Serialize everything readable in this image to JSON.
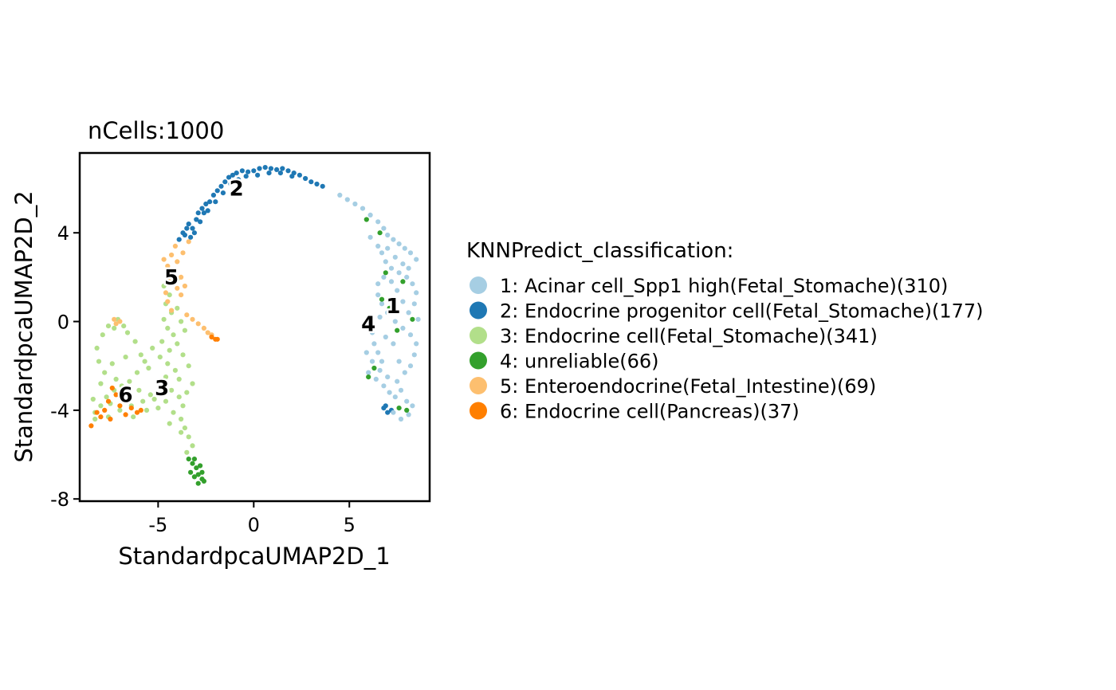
{
  "chart_data": {
    "type": "scatter",
    "subtitle": "nCells:1000",
    "xlabel": "StandardpcaUMAP2D_1",
    "ylabel": "StandardpcaUMAP2D_2",
    "xlim": [
      -9.1,
      9.2
    ],
    "ylim": [
      -8.1,
      7.6
    ],
    "x_ticks": [
      {
        "value": -5,
        "label": "-5"
      },
      {
        "value": 0,
        "label": "0"
      },
      {
        "value": 5,
        "label": "5"
      }
    ],
    "y_ticks": [
      {
        "value": -8,
        "label": "-8"
      },
      {
        "value": -4,
        "label": "-4"
      },
      {
        "value": 0,
        "label": "0"
      },
      {
        "value": 4,
        "label": "4"
      }
    ],
    "legend": {
      "title": "KNNPredict_classification:",
      "placement": "right",
      "entries": [
        {
          "label": "1: Acinar cell_Spp1 high(Fetal_Stomache)(310)",
          "color": "#A6CEE3"
        },
        {
          "label": "2: Endocrine progenitor cell(Fetal_Stomache)(177)",
          "color": "#1F78B4"
        },
        {
          "label": "3: Endocrine cell(Fetal_Stomache)(341)",
          "color": "#B2DF8A"
        },
        {
          "label": "4: unreliable(66)",
          "color": "#33A02C"
        },
        {
          "label": "5: Enteroendocrine(Fetal_Intestine)(69)",
          "color": "#FDBF6F"
        },
        {
          "label": "6: Endocrine cell(Pancreas)(37)",
          "color": "#FF7F00"
        }
      ]
    },
    "cluster_labels": [
      {
        "text": "1",
        "x": 7.3,
        "y": 0.7
      },
      {
        "text": "2",
        "x": -0.9,
        "y": 6.0
      },
      {
        "text": "3",
        "x": -4.8,
        "y": -3.0
      },
      {
        "text": "4",
        "x": 6.0,
        "y": -0.1
      },
      {
        "text": "5",
        "x": -4.3,
        "y": 2.0
      },
      {
        "text": "6",
        "x": -6.7,
        "y": -3.3
      }
    ],
    "point_groups": [
      {
        "cluster": 2,
        "color": "#1F78B4",
        "points": [
          [
            -3.9,
            3.7
          ],
          [
            -3.7,
            4.0
          ],
          [
            -3.5,
            4.2
          ],
          [
            -3.4,
            4.4
          ],
          [
            -3.2,
            4.2
          ],
          [
            -3.0,
            4.6
          ],
          [
            -2.9,
            4.9
          ],
          [
            -2.7,
            5.1
          ],
          [
            -2.5,
            5.3
          ],
          [
            -2.3,
            5.4
          ],
          [
            -2.1,
            5.7
          ],
          [
            -1.9,
            5.9
          ],
          [
            -1.7,
            6.1
          ],
          [
            -1.5,
            6.3
          ],
          [
            -1.3,
            6.5
          ],
          [
            -1.1,
            6.6
          ],
          [
            -0.9,
            6.7
          ],
          [
            -0.6,
            6.8
          ],
          [
            -0.3,
            6.75
          ],
          [
            0.0,
            6.8
          ],
          [
            0.3,
            6.9
          ],
          [
            0.6,
            6.95
          ],
          [
            0.9,
            6.9
          ],
          [
            1.2,
            6.85
          ],
          [
            1.5,
            6.9
          ],
          [
            1.8,
            6.8
          ],
          [
            2.1,
            6.7
          ],
          [
            2.4,
            6.6
          ],
          [
            2.7,
            6.45
          ],
          [
            3.0,
            6.3
          ],
          [
            3.3,
            6.2
          ],
          [
            3.6,
            6.1
          ],
          [
            -3.3,
            3.8
          ],
          [
            -3.1,
            4.0
          ],
          [
            -2.8,
            4.5
          ],
          [
            -2.4,
            5.0
          ],
          [
            -2.0,
            5.4
          ],
          [
            -1.6,
            5.8
          ],
          [
            -1.2,
            6.2
          ],
          [
            -0.8,
            6.4
          ],
          [
            -0.4,
            6.55
          ],
          [
            0.2,
            6.6
          ],
          [
            0.8,
            6.7
          ],
          [
            1.4,
            6.7
          ],
          [
            2.0,
            6.55
          ],
          [
            -3.6,
            3.9
          ],
          [
            -2.6,
            4.9
          ],
          [
            6.8,
            -3.9
          ],
          [
            7.0,
            -4.1
          ],
          [
            7.2,
            -4.0
          ],
          [
            6.9,
            -3.8
          ]
        ]
      },
      {
        "cluster": 1,
        "color": "#A6CEE3",
        "points": [
          [
            4.5,
            5.7
          ],
          [
            4.9,
            5.5
          ],
          [
            5.3,
            5.3
          ],
          [
            5.7,
            5.1
          ],
          [
            6.1,
            4.8
          ],
          [
            6.5,
            4.5
          ],
          [
            6.8,
            4.2
          ],
          [
            7.0,
            3.9
          ],
          [
            7.3,
            3.7
          ],
          [
            7.6,
            3.5
          ],
          [
            7.9,
            3.3
          ],
          [
            8.2,
            3.1
          ],
          [
            8.5,
            2.8
          ],
          [
            6.5,
            3.4
          ],
          [
            6.7,
            3.1
          ],
          [
            6.9,
            2.7
          ],
          [
            7.2,
            2.4
          ],
          [
            7.6,
            2.2
          ],
          [
            8.0,
            2.0
          ],
          [
            8.3,
            1.7
          ],
          [
            8.5,
            1.3
          ],
          [
            8.4,
            0.8
          ],
          [
            8.1,
            0.4
          ],
          [
            7.8,
            0.9
          ],
          [
            7.5,
            1.4
          ],
          [
            7.2,
            1.8
          ],
          [
            6.8,
            2.0
          ],
          [
            6.5,
            1.7
          ],
          [
            6.5,
            1.2
          ],
          [
            6.7,
            0.8
          ],
          [
            7.0,
            0.4
          ],
          [
            7.4,
            0.0
          ],
          [
            7.8,
            -0.3
          ],
          [
            8.2,
            -0.6
          ],
          [
            8.5,
            -1.0
          ],
          [
            6.2,
            -0.5
          ],
          [
            6.3,
            -1.0
          ],
          [
            6.5,
            -1.4
          ],
          [
            6.7,
            -1.8
          ],
          [
            6.6,
            -2.2
          ],
          [
            6.4,
            -2.6
          ],
          [
            6.8,
            -2.9
          ],
          [
            7.1,
            -3.2
          ],
          [
            7.4,
            -3.4
          ],
          [
            7.7,
            -3.1
          ],
          [
            8.0,
            -3.6
          ],
          [
            8.3,
            -3.8
          ],
          [
            8.1,
            -4.2
          ],
          [
            7.7,
            -4.4
          ],
          [
            7.3,
            -4.1
          ],
          [
            7.0,
            -2.5
          ],
          [
            7.5,
            -2.7
          ],
          [
            7.9,
            -2.3
          ],
          [
            8.2,
            -2.0
          ],
          [
            8.4,
            -1.5
          ],
          [
            7.3,
            -1.0
          ],
          [
            6.9,
            -0.7
          ],
          [
            6.0,
            -2.3
          ],
          [
            6.2,
            -1.8
          ],
          [
            5.9,
            -1.4
          ],
          [
            7.0,
            3.3
          ],
          [
            7.8,
            2.6
          ],
          [
            8.1,
            2.4
          ],
          [
            6.6,
            0.2
          ],
          [
            7.6,
            -1.8
          ],
          [
            8.6,
            0.1
          ],
          [
            6.1,
            3.8
          ],
          [
            7.4,
            2.9
          ]
        ]
      },
      {
        "cluster": 4,
        "color": "#33A02C",
        "points": [
          [
            5.9,
            4.6
          ],
          [
            6.6,
            4.0
          ],
          [
            6.9,
            2.2
          ],
          [
            7.8,
            1.8
          ],
          [
            6.7,
            1.0
          ],
          [
            7.1,
            0.6
          ],
          [
            8.3,
            0.1
          ],
          [
            7.5,
            -0.4
          ],
          [
            6.3,
            -2.1
          ],
          [
            6.0,
            -2.5
          ],
          [
            7.6,
            -3.9
          ],
          [
            8.0,
            -4.0
          ],
          [
            -3.4,
            -6.2
          ],
          [
            -3.2,
            -6.4
          ],
          [
            -3.0,
            -6.6
          ],
          [
            -2.9,
            -6.9
          ],
          [
            -2.7,
            -7.1
          ],
          [
            -2.9,
            -7.3
          ],
          [
            -3.1,
            -7.0
          ],
          [
            -2.8,
            -6.5
          ],
          [
            -3.3,
            -6.8
          ],
          [
            -2.6,
            -7.2
          ],
          [
            -2.7,
            -6.8
          ],
          [
            -3.1,
            -6.2
          ]
        ]
      },
      {
        "cluster": 3,
        "color": "#B2DF8A",
        "points": [
          [
            -4.4,
            1.2
          ],
          [
            -4.6,
            0.8
          ],
          [
            -4.3,
            0.4
          ],
          [
            -4.7,
            0.1
          ],
          [
            -4.5,
            -0.3
          ],
          [
            -4.2,
            -0.6
          ],
          [
            -4.8,
            -0.9
          ],
          [
            -4.4,
            -1.3
          ],
          [
            -4.9,
            -1.6
          ],
          [
            -4.5,
            -1.9
          ],
          [
            -4.1,
            -2.2
          ],
          [
            -4.6,
            -2.5
          ],
          [
            -5.0,
            -2.8
          ],
          [
            -4.3,
            -3.1
          ],
          [
            -3.9,
            -3.4
          ],
          [
            -4.6,
            -3.6
          ],
          [
            -5.0,
            -3.9
          ],
          [
            -4.2,
            -4.1
          ],
          [
            -3.8,
            -4.4
          ],
          [
            -3.6,
            -4.8
          ],
          [
            -3.4,
            -5.2
          ],
          [
            -3.2,
            -5.6
          ],
          [
            -3.5,
            -5.9
          ],
          [
            -3.7,
            -3.8
          ],
          [
            -3.9,
            -2.6
          ],
          [
            -5.3,
            -1.2
          ],
          [
            -5.7,
            -1.8
          ],
          [
            -6.1,
            -2.3
          ],
          [
            -6.5,
            -2.7
          ],
          [
            -6.9,
            -2.9
          ],
          [
            -7.3,
            -3.1
          ],
          [
            -7.7,
            -3.4
          ],
          [
            -8.0,
            -3.8
          ],
          [
            -8.3,
            -4.1
          ],
          [
            -7.6,
            -4.3
          ],
          [
            -7.0,
            -4.0
          ],
          [
            -6.4,
            -3.8
          ],
          [
            -5.8,
            -3.6
          ],
          [
            -5.4,
            -3.3
          ],
          [
            -6.0,
            -3.1
          ],
          [
            -7.2,
            -2.6
          ],
          [
            -7.8,
            -2.3
          ],
          [
            -8.1,
            -1.8
          ],
          [
            -8.2,
            -1.2
          ],
          [
            -7.9,
            -0.6
          ],
          [
            -7.6,
            -0.2
          ],
          [
            -7.3,
            -0.3
          ],
          [
            -7.1,
            0.1
          ],
          [
            -6.8,
            -0.2
          ],
          [
            -6.6,
            -0.5
          ],
          [
            -6.2,
            -0.9
          ],
          [
            -5.9,
            -1.5
          ],
          [
            -5.5,
            -2.1
          ],
          [
            -6.7,
            -1.6
          ],
          [
            -7.4,
            -1.9
          ],
          [
            -8.0,
            -2.8
          ],
          [
            -8.4,
            -3.5
          ],
          [
            -6.3,
            -4.3
          ],
          [
            -5.6,
            -4.0
          ],
          [
            -4.0,
            0.6
          ],
          [
            -3.8,
            0.0
          ],
          [
            -3.6,
            -0.4
          ],
          [
            -4.0,
            -1.0
          ],
          [
            -3.7,
            -1.5
          ],
          [
            -3.4,
            -2.0
          ],
          [
            -3.2,
            -2.8
          ],
          [
            -3.5,
            -3.2
          ],
          [
            -4.7,
            1.6
          ],
          [
            -4.0,
            1.9
          ],
          [
            -3.8,
            -5.0
          ],
          [
            -4.4,
            -4.6
          ],
          [
            -5.2,
            -3.5
          ],
          [
            -7.5,
            -3.7
          ],
          [
            -8.3,
            -4.4
          ],
          [
            -6.5,
            -3.3
          ]
        ]
      },
      {
        "cluster": 5,
        "color": "#FDBF6F",
        "points": [
          [
            -4.1,
            3.4
          ],
          [
            -4.3,
            3.0
          ],
          [
            -4.0,
            2.7
          ],
          [
            -4.5,
            2.5
          ],
          [
            -4.2,
            2.2
          ],
          [
            -4.4,
            1.8
          ],
          [
            -4.0,
            1.5
          ],
          [
            -4.6,
            1.3
          ],
          [
            -3.7,
            3.1
          ],
          [
            -4.7,
            2.8
          ],
          [
            -3.8,
            2.0
          ],
          [
            -4.5,
            0.9
          ],
          [
            -3.6,
            1.6
          ],
          [
            -3.5,
            0.3
          ],
          [
            -3.2,
            0.1
          ],
          [
            -2.9,
            -0.1
          ],
          [
            -2.6,
            -0.3
          ],
          [
            -2.4,
            -0.5
          ],
          [
            -2.2,
            -0.6
          ],
          [
            -3.4,
            3.6
          ],
          [
            -3.8,
            1.2
          ],
          [
            -4.3,
            0.5
          ],
          [
            -7.3,
            0.1
          ],
          [
            -7.2,
            -0.1
          ],
          [
            -7.0,
            0.0
          ]
        ]
      },
      {
        "cluster": 6,
        "color": "#FF7F00",
        "points": [
          [
            -7.4,
            -3.0
          ],
          [
            -7.2,
            -3.3
          ],
          [
            -7.6,
            -3.6
          ],
          [
            -7.8,
            -4.0
          ],
          [
            -8.2,
            -4.1
          ],
          [
            -8.0,
            -4.3
          ],
          [
            -8.5,
            -4.7
          ],
          [
            -6.4,
            -3.9
          ],
          [
            -6.1,
            -4.1
          ],
          [
            -5.9,
            -4.0
          ],
          [
            -7.0,
            -3.8
          ],
          [
            -6.7,
            -4.2
          ],
          [
            -2.2,
            -0.7
          ],
          [
            -2.0,
            -0.8
          ],
          [
            -1.9,
            -0.8
          ],
          [
            -7.5,
            -4.4
          ]
        ]
      }
    ]
  }
}
